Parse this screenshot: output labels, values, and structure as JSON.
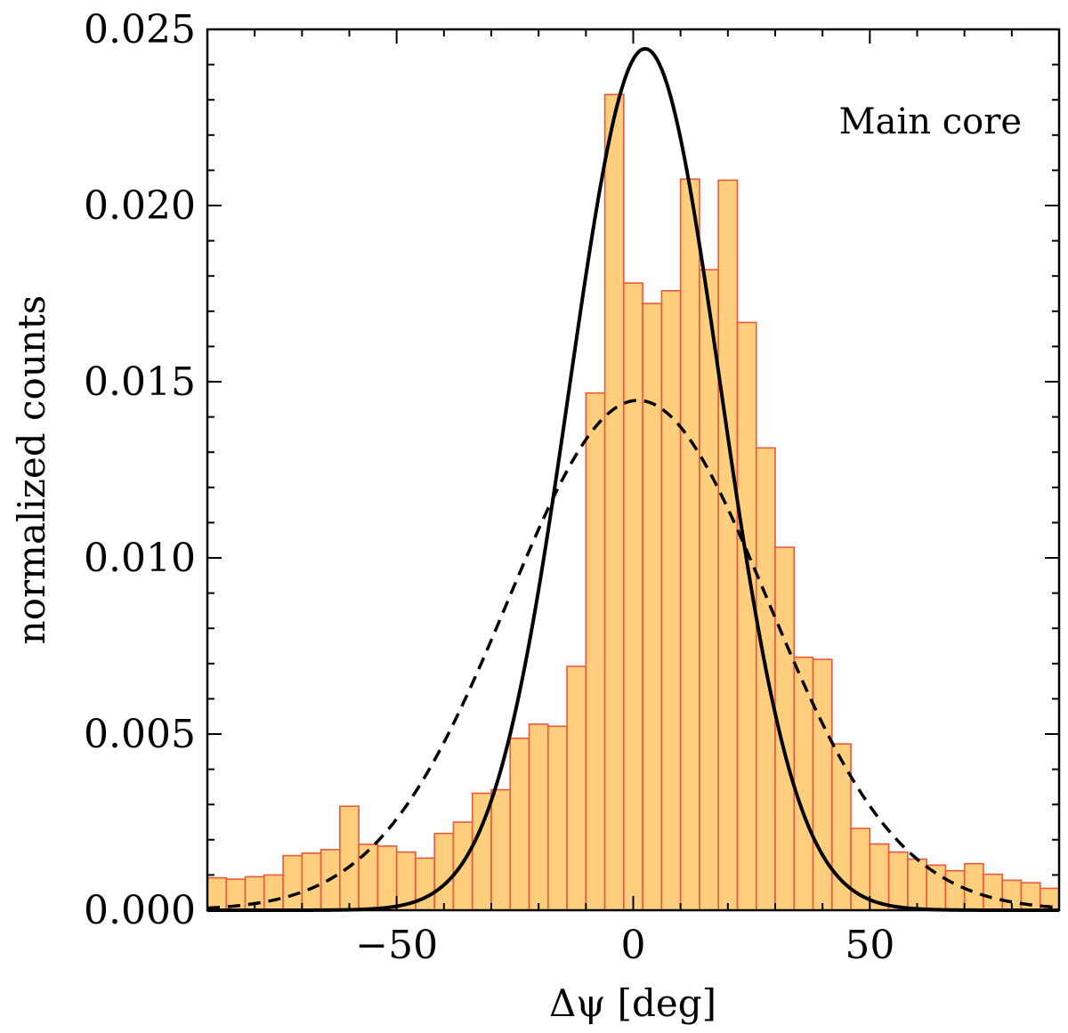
{
  "chart_data": {
    "type": "bar",
    "title": "",
    "annotation": "Main core",
    "xlabel": "Δψ [deg]",
    "ylabel": "normalized counts",
    "xlim": [
      -90,
      90
    ],
    "ylim": [
      0,
      0.025
    ],
    "xticks": [
      -50,
      0,
      50
    ],
    "xtick_labels": [
      "−50",
      "0",
      "50"
    ],
    "yticks": [
      0,
      0.005,
      0.01,
      0.015,
      0.02,
      0.025
    ],
    "ytick_labels": [
      "0.000",
      "0.005",
      "0.010",
      "0.015",
      "0.020",
      "0.025"
    ],
    "bin_width": 4,
    "bin_start": -90,
    "histogram_values": [
      0.00092,
      0.00088,
      0.00095,
      0.001,
      0.00155,
      0.00162,
      0.00172,
      0.00295,
      0.00187,
      0.00182,
      0.00165,
      0.00148,
      0.00218,
      0.0025,
      0.00332,
      0.00342,
      0.00488,
      0.00528,
      0.00522,
      0.00692,
      0.01468,
      0.02315,
      0.0178,
      0.01722,
      0.01758,
      0.02075,
      0.01818,
      0.02072,
      0.01668,
      0.01312,
      0.0103,
      0.00718,
      0.00712,
      0.00472,
      0.00232,
      0.00188,
      0.00165,
      0.00145,
      0.00128,
      0.00112,
      0.00132,
      0.00102,
      0.00085,
      0.00078,
      0.00062
    ],
    "series": [
      {
        "name": "Gaussian fit (solid)",
        "style": "solid",
        "amplitude": 0.02445,
        "mean": 2.5,
        "sigma": 16
      },
      {
        "name": "Gaussian fit (dashed)",
        "style": "dashed",
        "amplitude": 0.01447,
        "mean": 1,
        "sigma": 27.5
      }
    ],
    "colors": {
      "bar_fill": "#ffcf7e",
      "bar_edge": "#f0563a",
      "line": "#000000"
    }
  }
}
